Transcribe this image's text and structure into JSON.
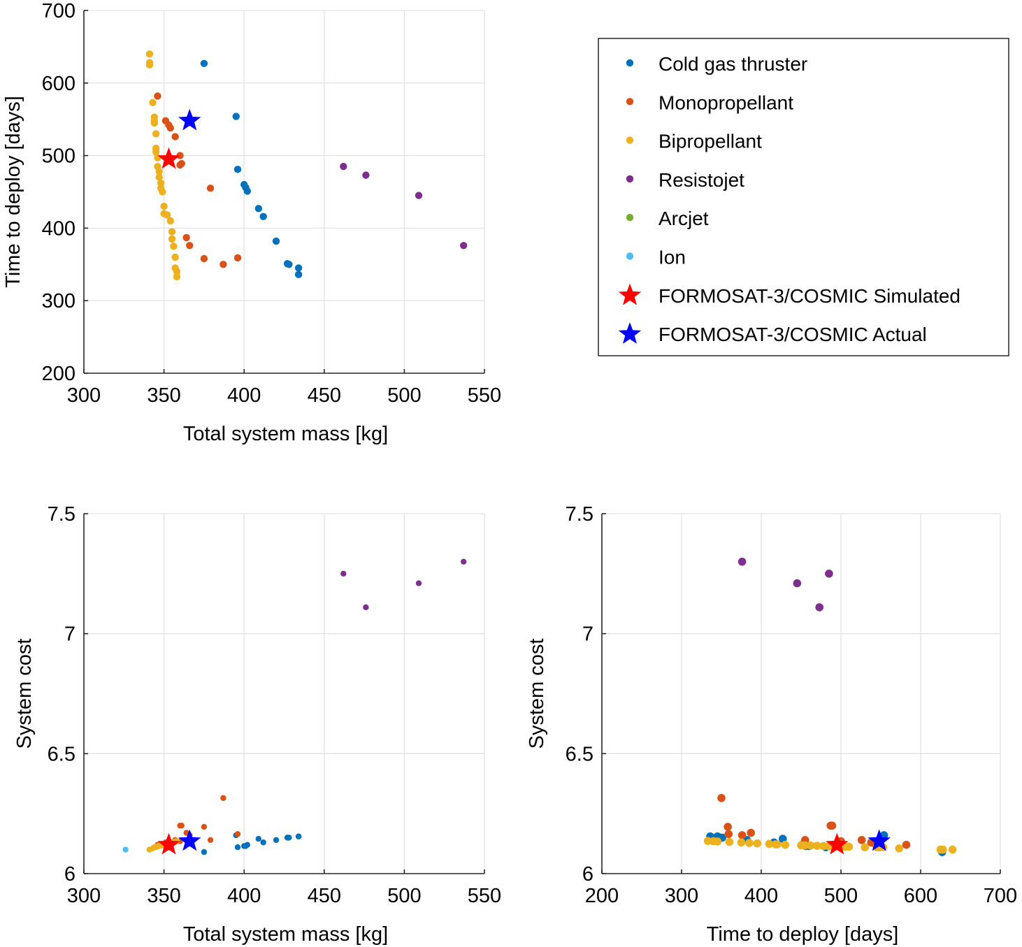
{
  "chart_data": {
    "type": "scatter",
    "legend": {
      "placement": "top-right",
      "entries": [
        {
          "name": "Cold gas thruster",
          "color": "#0072BD",
          "marker": "dot"
        },
        {
          "name": "Monopropellant",
          "color": "#D95319",
          "marker": "dot"
        },
        {
          "name": "Bipropellant",
          "color": "#EDB120",
          "marker": "dot"
        },
        {
          "name": "Resistojet",
          "color": "#7E2F8E",
          "marker": "dot"
        },
        {
          "name": "Arcjet",
          "color": "#77AC30",
          "marker": "dot"
        },
        {
          "name": "Ion",
          "color": "#4DBEEE",
          "marker": "dot"
        },
        {
          "name": "FORMOSAT-3/COSMIC Simulated",
          "color": "#FF0000",
          "marker": "star"
        },
        {
          "name": "FORMOSAT-3/COSMIC Actual",
          "color": "#0000FF",
          "marker": "star"
        }
      ]
    },
    "series": [
      {
        "name": "Cold gas thruster",
        "color": "#0072BD",
        "points": [
          {
            "mass": 375,
            "time": 627,
            "cost": 6.09
          },
          {
            "mass": 395,
            "time": 554,
            "cost": 6.16
          },
          {
            "mass": 396,
            "time": 481,
            "cost": 6.11
          },
          {
            "mass": 400,
            "time": 460,
            "cost": 6.115
          },
          {
            "mass": 401,
            "time": 456,
            "cost": 6.115
          },
          {
            "mass": 402,
            "time": 451,
            "cost": 6.12
          },
          {
            "mass": 409,
            "time": 427,
            "cost": 6.145
          },
          {
            "mass": 412,
            "time": 416,
            "cost": 6.13
          },
          {
            "mass": 420,
            "time": 382,
            "cost": 6.14
          },
          {
            "mass": 427,
            "time": 351,
            "cost": 6.15
          },
          {
            "mass": 428,
            "time": 350,
            "cost": 6.15
          },
          {
            "mass": 434,
            "time": 345,
            "cost": 6.155
          },
          {
            "mass": 434,
            "time": 336,
            "cost": 6.155
          }
        ]
      },
      {
        "name": "Monopropellant",
        "color": "#D95319",
        "points": [
          {
            "mass": 346,
            "time": 582,
            "cost": 6.12
          },
          {
            "mass": 351,
            "time": 548,
            "cost": 6.13
          },
          {
            "mass": 353,
            "time": 542,
            "cost": 6.125
          },
          {
            "mass": 354,
            "time": 538,
            "cost": 6.13
          },
          {
            "mass": 357,
            "time": 526,
            "cost": 6.14
          },
          {
            "mass": 360,
            "time": 500,
            "cost": 6.135
          },
          {
            "mass": 361,
            "time": 489,
            "cost": 6.2
          },
          {
            "mass": 360,
            "time": 487,
            "cost": 6.2
          },
          {
            "mass": 379,
            "time": 455,
            "cost": 6.14
          },
          {
            "mass": 364,
            "time": 387,
            "cost": 6.17
          },
          {
            "mass": 366,
            "time": 376,
            "cost": 6.16
          },
          {
            "mass": 375,
            "time": 358,
            "cost": 6.195
          },
          {
            "mass": 387,
            "time": 350,
            "cost": 6.315
          },
          {
            "mass": 396,
            "time": 359,
            "cost": 6.165
          }
        ]
      },
      {
        "name": "Bipropellant",
        "color": "#EDB120",
        "points": [
          {
            "mass": 341,
            "time": 640,
            "cost": 6.1
          },
          {
            "mass": 341,
            "time": 628,
            "cost": 6.1
          },
          {
            "mass": 341,
            "time": 625,
            "cost": 6.1
          },
          {
            "mass": 343,
            "time": 573,
            "cost": 6.105
          },
          {
            "mass": 344,
            "time": 553,
            "cost": 6.11
          },
          {
            "mass": 344,
            "time": 548,
            "cost": 6.11
          },
          {
            "mass": 344,
            "time": 545,
            "cost": 6.11
          },
          {
            "mass": 345,
            "time": 530,
            "cost": 6.11
          },
          {
            "mass": 345,
            "time": 510,
            "cost": 6.112
          },
          {
            "mass": 345,
            "time": 505,
            "cost": 6.112
          },
          {
            "mass": 346,
            "time": 497,
            "cost": 6.113
          },
          {
            "mass": 346,
            "time": 485,
            "cost": 6.114
          },
          {
            "mass": 347,
            "time": 478,
            "cost": 6.115
          },
          {
            "mass": 347,
            "time": 470,
            "cost": 6.116
          },
          {
            "mass": 348,
            "time": 462,
            "cost": 6.117
          },
          {
            "mass": 348,
            "time": 455,
            "cost": 6.118
          },
          {
            "mass": 349,
            "time": 450,
            "cost": 6.118
          },
          {
            "mass": 350,
            "time": 430,
            "cost": 6.12
          },
          {
            "mass": 350,
            "time": 420,
            "cost": 6.122
          },
          {
            "mass": 352,
            "time": 418,
            "cost": 6.122
          },
          {
            "mass": 354,
            "time": 410,
            "cost": 6.124
          },
          {
            "mass": 355,
            "time": 395,
            "cost": 6.126
          },
          {
            "mass": 355,
            "time": 385,
            "cost": 6.128
          },
          {
            "mass": 356,
            "time": 375,
            "cost": 6.13
          },
          {
            "mass": 357,
            "time": 360,
            "cost": 6.132
          },
          {
            "mass": 357,
            "time": 345,
            "cost": 6.134
          },
          {
            "mass": 358,
            "time": 340,
            "cost": 6.135
          },
          {
            "mass": 358,
            "time": 333,
            "cost": 6.136
          }
        ]
      },
      {
        "name": "Resistojet",
        "color": "#7E2F8E",
        "points": [
          {
            "mass": 462,
            "time": 485,
            "cost": 7.25
          },
          {
            "mass": 476,
            "time": 473,
            "cost": 7.11
          },
          {
            "mass": 509,
            "time": 445,
            "cost": 7.21
          },
          {
            "mass": 537,
            "time": 376,
            "cost": 7.3
          }
        ]
      },
      {
        "name": "Arcjet",
        "color": "#77AC30",
        "points": []
      },
      {
        "name": "Ion",
        "color": "#4DBEEE",
        "points": [
          {
            "mass": 326,
            "time": null,
            "cost": 6.1
          }
        ]
      },
      {
        "name": "FORMOSAT-3/COSMIC Simulated",
        "color": "#FF0000",
        "marker": "star",
        "points": [
          {
            "mass": 353,
            "time": 495,
            "cost": 6.12
          }
        ]
      },
      {
        "name": "FORMOSAT-3/COSMIC Actual",
        "color": "#0000FF",
        "marker": "star",
        "points": [
          {
            "mass": 366,
            "time": 548,
            "cost": 6.135
          }
        ]
      }
    ],
    "panels": [
      {
        "id": "mass-vs-time",
        "title": "",
        "x": "mass",
        "y": "time",
        "xlabel": "Total system mass [kg]",
        "ylabel": "Time to deploy [days]",
        "xlim": [
          300,
          550
        ],
        "ylim": [
          200,
          700
        ],
        "xticks": [
          300,
          350,
          400,
          450,
          500,
          550
        ],
        "yticks": [
          200,
          300,
          400,
          500,
          600,
          700
        ],
        "xtick_labels": [
          "300",
          "350",
          "400",
          "450",
          "500",
          "550"
        ],
        "ytick_labels": [
          "200",
          "300",
          "400",
          "500",
          "600",
          "700"
        ],
        "grid": true
      },
      {
        "id": "mass-vs-cost",
        "title": "",
        "x": "mass",
        "y": "cost",
        "xlabel": "Total system mass [kg]",
        "ylabel": "System cost",
        "xlim": [
          300,
          550
        ],
        "ylim": [
          6,
          7.5
        ],
        "xticks": [
          300,
          350,
          400,
          450,
          500,
          550
        ],
        "yticks": [
          6,
          6.5,
          7,
          7.5
        ],
        "xtick_labels": [
          "300",
          "350",
          "400",
          "450",
          "500",
          "550"
        ],
        "ytick_labels": [
          "6",
          "6.5",
          "7",
          "7.5"
        ],
        "grid": true
      },
      {
        "id": "time-vs-cost",
        "title": "",
        "x": "time",
        "y": "cost",
        "xlabel": "Time to deploy [days]",
        "ylabel": "System cost",
        "xlim": [
          200,
          700
        ],
        "ylim": [
          6,
          7.5
        ],
        "xticks": [
          200,
          300,
          400,
          500,
          600,
          700
        ],
        "yticks": [
          6,
          6.5,
          7,
          7.5
        ],
        "xtick_labels": [
          "200",
          "300",
          "400",
          "500",
          "600",
          "700"
        ],
        "ytick_labels": [
          "6",
          "6.5",
          "7",
          "7.5"
        ],
        "grid": true
      }
    ]
  }
}
